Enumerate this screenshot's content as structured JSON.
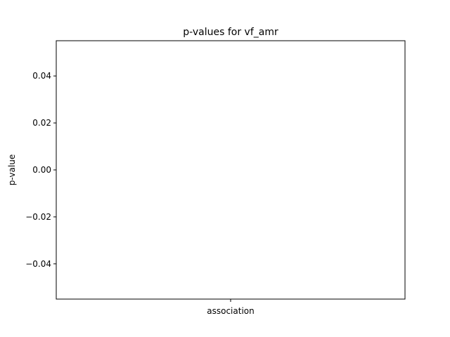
{
  "chart_data": {
    "type": "bar",
    "title": "p-values for vf_amr",
    "xlabel": "",
    "ylabel": "p-value",
    "categories": [
      "association"
    ],
    "values": [
      null
    ],
    "ylim": [
      -0.055,
      0.055
    ],
    "yticks": [
      0.04,
      0.02,
      0.0,
      -0.02,
      -0.04
    ],
    "ytick_labels": [
      "0.04",
      "0.02",
      "0.00",
      "−0.02",
      "−0.04"
    ],
    "grid": false,
    "legend": "none"
  }
}
